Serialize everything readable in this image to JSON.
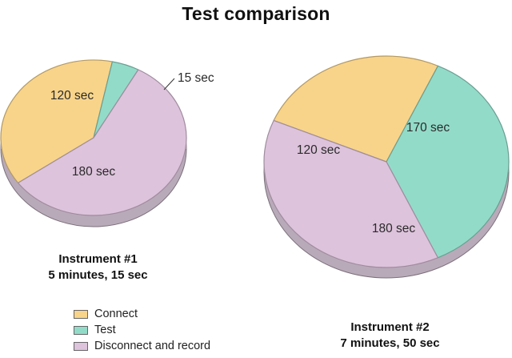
{
  "chart_data": {
    "type": "pie",
    "title": "Test comparison",
    "colors": {
      "Connect": "#f8d48a",
      "Test": "#93dbc9",
      "Disconnect and record": "#ddc3dc"
    },
    "legend": [
      "Connect",
      "Test",
      "Disconnect and record"
    ],
    "legend_placement": "bottom-left",
    "pies": [
      {
        "name_line1": "Instrument #1",
        "name_line2": "5 minutes, 15 sec",
        "slices": [
          {
            "category": "Connect",
            "value": 120,
            "label": "120 sec"
          },
          {
            "category": "Test",
            "value": 15,
            "label": "15 sec"
          },
          {
            "category": "Disconnect and record",
            "value": 180,
            "label": "180 sec"
          }
        ]
      },
      {
        "name_line1": "Instrument #2",
        "name_line2": "7 minutes, 50 sec",
        "slices": [
          {
            "category": "Connect",
            "value": 120,
            "label": "120 sec"
          },
          {
            "category": "Test",
            "value": 170,
            "label": "170 sec"
          },
          {
            "category": "Disconnect and record",
            "value": 180,
            "label": "180 sec"
          }
        ]
      }
    ]
  }
}
